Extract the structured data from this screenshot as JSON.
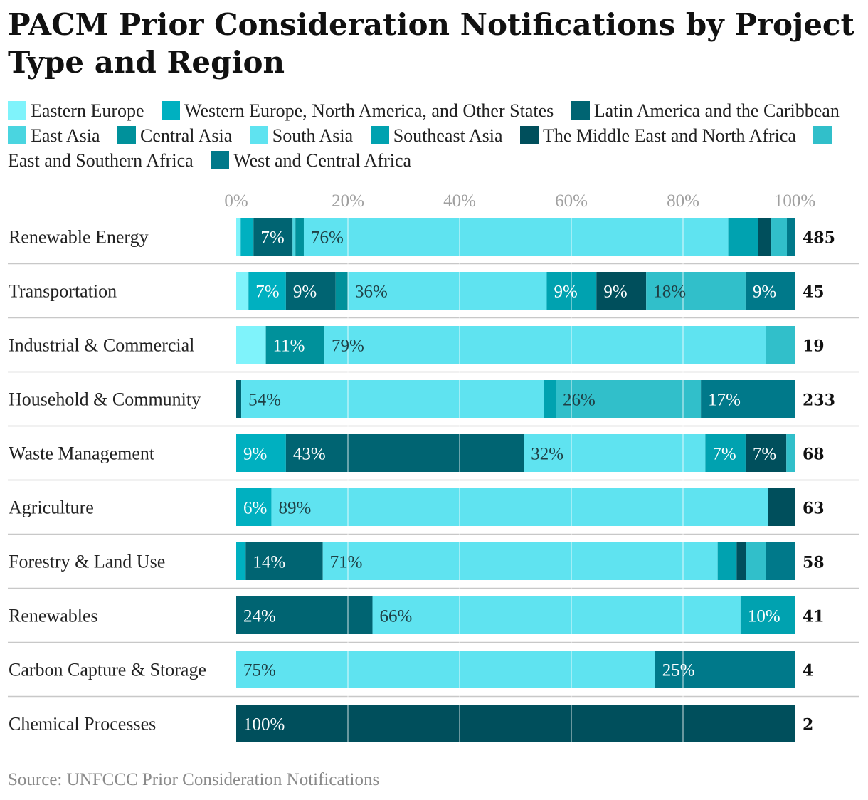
{
  "chart_data": {
    "type": "bar",
    "orientation": "horizontal",
    "stacked": "percent",
    "title": "PACM Prior Consideration Notifications by Project Type and Region",
    "source": "Source: UNFCCC Prior Consideration Notifications",
    "xlim": [
      0,
      100
    ],
    "x_ticks": [
      "0%",
      "20%",
      "40%",
      "60%",
      "80%",
      "100%"
    ],
    "x_tick_values": [
      0,
      20,
      40,
      60,
      80,
      100
    ],
    "series": [
      {
        "name": "Eastern Europe",
        "color": "#7ff3fb"
      },
      {
        "name": "Western Europe, North America, and Other States",
        "color": "#00b0c0"
      },
      {
        "name": "Latin America and the Caribbean",
        "color": "#006472"
      },
      {
        "name": "East Asia",
        "color": "#4ad5e0"
      },
      {
        "name": "Central Asia",
        "color": "#00919b"
      },
      {
        "name": "South Asia",
        "color": "#5fe3f0"
      },
      {
        "name": "Southeast Asia",
        "color": "#00a2b0"
      },
      {
        "name": "The Middle East and North Africa",
        "color": "#004f5c"
      },
      {
        "name": "East and Southern Africa",
        "color": "#31bfca"
      },
      {
        "name": "West and Central Africa",
        "color": "#00798a"
      }
    ],
    "categories": [
      {
        "name": "Renewable Energy",
        "total": "485",
        "segments": [
          {
            "s": 0,
            "v": 0.8
          },
          {
            "s": 1,
            "v": 2.3
          },
          {
            "s": 2,
            "v": 7,
            "label": "7%"
          },
          {
            "s": 3,
            "v": 0.5
          },
          {
            "s": 4,
            "v": 1.5
          },
          {
            "s": 5,
            "v": 76,
            "label": "76%"
          },
          {
            "s": 6,
            "v": 5.4
          },
          {
            "s": 7,
            "v": 2.3
          },
          {
            "s": 8,
            "v": 2.8
          },
          {
            "s": 9,
            "v": 1.4
          }
        ]
      },
      {
        "name": "Transportation",
        "total": "45",
        "segments": [
          {
            "s": 0,
            "v": 2.2
          },
          {
            "s": 1,
            "v": 6.7,
            "label": "7%"
          },
          {
            "s": 2,
            "v": 8.9,
            "label": "9%"
          },
          {
            "s": 4,
            "v": 2.2
          },
          {
            "s": 5,
            "v": 35.6,
            "label": "36%"
          },
          {
            "s": 6,
            "v": 8.9,
            "label": "9%"
          },
          {
            "s": 7,
            "v": 8.9,
            "label": "9%"
          },
          {
            "s": 8,
            "v": 17.8,
            "label": "18%"
          },
          {
            "s": 9,
            "v": 8.8,
            "label": "9%"
          }
        ]
      },
      {
        "name": "Industrial & Commercial",
        "total": "19",
        "segments": [
          {
            "s": 0,
            "v": 5.3
          },
          {
            "s": 4,
            "v": 10.5,
            "label": "11%"
          },
          {
            "s": 5,
            "v": 79,
            "label": "79%"
          },
          {
            "s": 8,
            "v": 5.2
          }
        ]
      },
      {
        "name": "Household & Community",
        "total": "233",
        "segments": [
          {
            "s": 2,
            "v": 0.9
          },
          {
            "s": 5,
            "v": 54.2,
            "label": "54%"
          },
          {
            "s": 6,
            "v": 2.1
          },
          {
            "s": 8,
            "v": 26,
            "label": "26%"
          },
          {
            "s": 9,
            "v": 16.8,
            "label": "17%"
          }
        ]
      },
      {
        "name": "Waste Management",
        "total": "68",
        "segments": [
          {
            "s": 1,
            "v": 8.9,
            "label": "9%"
          },
          {
            "s": 2,
            "v": 42.6,
            "label": "43%"
          },
          {
            "s": 5,
            "v": 32.5,
            "label": "32%"
          },
          {
            "s": 6,
            "v": 7.2,
            "label": "7%"
          },
          {
            "s": 7,
            "v": 7.3,
            "label": "7%"
          },
          {
            "s": 8,
            "v": 1.5
          }
        ]
      },
      {
        "name": "Agriculture",
        "total": "63",
        "segments": [
          {
            "s": 1,
            "v": 6.3,
            "label": "6%"
          },
          {
            "s": 5,
            "v": 88.9,
            "label": "89%"
          },
          {
            "s": 7,
            "v": 4.8
          }
        ]
      },
      {
        "name": "Forestry & Land Use",
        "total": "58",
        "segments": [
          {
            "s": 1,
            "v": 1.7
          },
          {
            "s": 2,
            "v": 13.8,
            "label": "14%"
          },
          {
            "s": 5,
            "v": 70.7,
            "label": "71%"
          },
          {
            "s": 6,
            "v": 3.4
          },
          {
            "s": 7,
            "v": 1.7
          },
          {
            "s": 8,
            "v": 3.5
          },
          {
            "s": 9,
            "v": 5.2
          }
        ]
      },
      {
        "name": "Renewables",
        "total": "41",
        "segments": [
          {
            "s": 2,
            "v": 24.4,
            "label": "24%"
          },
          {
            "s": 5,
            "v": 65.9,
            "label": "66%"
          },
          {
            "s": 6,
            "v": 9.7,
            "label": "10%"
          }
        ]
      },
      {
        "name": "Carbon Capture & Storage",
        "total": "4",
        "segments": [
          {
            "s": 5,
            "v": 75,
            "label": "75%"
          },
          {
            "s": 9,
            "v": 25,
            "label": "25%"
          }
        ]
      },
      {
        "name": "Chemical Processes",
        "total": "2",
        "segments": [
          {
            "s": 7,
            "v": 100,
            "label": "100%"
          }
        ]
      }
    ]
  }
}
